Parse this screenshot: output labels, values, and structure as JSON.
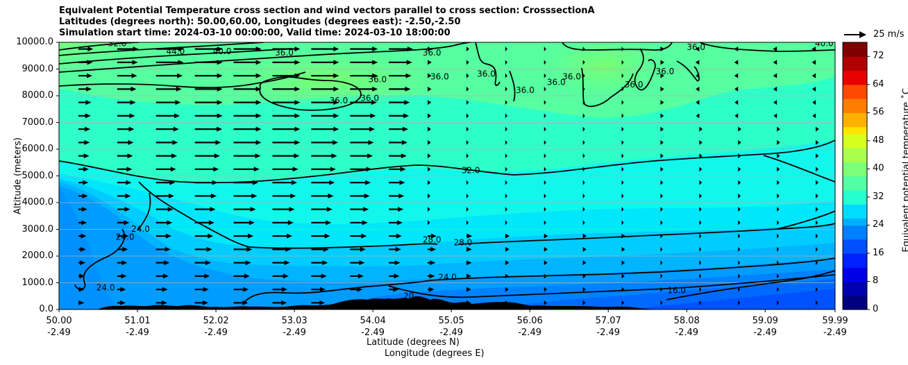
{
  "title_lines": [
    "Equivalent Potential Temperature cross section and wind vectors parallel to cross section: CrosssectionA",
    "Latitudes (degrees north): 50.00,60.00, Longitudes (degrees east): -2.50,-2.50",
    "Simulation start time: 2024-03-10 00:00:00, Valid time: 2024-03-10 18:00:00"
  ],
  "ylabel": "Altitude (meters)",
  "xlabel_lat": "Latitude (degrees N)",
  "xlabel_lon": "Longitude (degrees E)",
  "colorbar_label": "Equivalent potential temperature ˚C",
  "quiver_key_label": "25 m/s",
  "chart_data": {
    "type": "heatmap",
    "title": "Equivalent Potential Temperature cross section and wind vectors parallel to cross section: CrosssectionA",
    "ylim": [
      0,
      10000
    ],
    "xlim": [
      50.0,
      59.99
    ],
    "yticks": [
      "0.0",
      "1000.0",
      "2000.0",
      "3000.0",
      "4000.0",
      "5000.0",
      "6000.0",
      "7000.0",
      "8000.0",
      "9000.0",
      "10000.0"
    ],
    "ytick_values": [
      0,
      1000,
      2000,
      3000,
      4000,
      5000,
      6000,
      7000,
      8000,
      9000,
      10000
    ],
    "xticks_lat": [
      "50.00",
      "51.01",
      "52.02",
      "53.03",
      "54.04",
      "55.05",
      "56.06",
      "57.07",
      "58.08",
      "59.09",
      "59.99"
    ],
    "xtick_values": [
      50.0,
      51.01,
      52.02,
      53.03,
      54.04,
      55.05,
      56.06,
      57.07,
      58.08,
      59.09,
      59.99
    ],
    "xticks_lon": [
      "-2.49",
      "-2.49",
      "-2.49",
      "-2.49",
      "-2.49",
      "-2.49",
      "-2.49",
      "-2.49",
      "-2.49",
      "-2.49",
      "-2.49"
    ],
    "colorbar_ticks": [
      "0",
      "8",
      "16",
      "24",
      "32",
      "40",
      "48",
      "56",
      "64",
      "72"
    ],
    "colorbar_range": [
      0,
      76
    ],
    "grid": true,
    "contour_labels": [
      {
        "text": "32.0",
        "x": 50.75,
        "y": 9950
      },
      {
        "text": "44.0",
        "x": 51.5,
        "y": 9650
      },
      {
        "text": "40.0",
        "x": 52.1,
        "y": 9650
      },
      {
        "text": "36.0",
        "x": 52.9,
        "y": 9600
      },
      {
        "text": "36.0",
        "x": 54.8,
        "y": 9600
      },
      {
        "text": "36.0",
        "x": 54.9,
        "y": 8700
      },
      {
        "text": "36.0",
        "x": 54.1,
        "y": 8600
      },
      {
        "text": "36.0",
        "x": 53.6,
        "y": 7800
      },
      {
        "text": "36.0",
        "x": 54.0,
        "y": 7900
      },
      {
        "text": "36.0",
        "x": 55.5,
        "y": 8800
      },
      {
        "text": "36.0",
        "x": 56.0,
        "y": 8200
      },
      {
        "text": "36.0",
        "x": 56.4,
        "y": 8500
      },
      {
        "text": "36.0",
        "x": 56.6,
        "y": 8700
      },
      {
        "text": "36.0",
        "x": 57.4,
        "y": 8400
      },
      {
        "text": "36.0",
        "x": 57.8,
        "y": 8900
      },
      {
        "text": "36.0",
        "x": 58.2,
        "y": 9800
      },
      {
        "text": "40.0",
        "x": 59.85,
        "y": 9950
      },
      {
        "text": "32.0",
        "x": 55.3,
        "y": 5200
      },
      {
        "text": "28.0",
        "x": 54.8,
        "y": 2600
      },
      {
        "text": "28.0",
        "x": 55.2,
        "y": 2500
      },
      {
        "text": "24.0",
        "x": 51.05,
        "y": 3000
      },
      {
        "text": "24.0",
        "x": 50.85,
        "y": 2700
      },
      {
        "text": "24.0",
        "x": 55.0,
        "y": 1200
      },
      {
        "text": "24.0",
        "x": 50.6,
        "y": 800
      },
      {
        "text": "20",
        "x": 54.5,
        "y": 500
      },
      {
        "text": "16.0",
        "x": 57.95,
        "y": 700
      }
    ]
  },
  "colors": {
    "colormap": [
      "#00007f",
      "#0000b0",
      "#0000e8",
      "#0020ff",
      "#0050ff",
      "#0080ff",
      "#00b0ff",
      "#00dcfe",
      "#26ffd0",
      "#52ffa4",
      "#7eff78",
      "#aaff4c",
      "#d6ff20",
      "#ffe500",
      "#ffb100",
      "#ff7d00",
      "#ff4900",
      "#e80000",
      "#b00000",
      "#7f0000"
    ],
    "contour": "#000000",
    "terrain": "#000000",
    "grid": "#b0b0b0"
  }
}
